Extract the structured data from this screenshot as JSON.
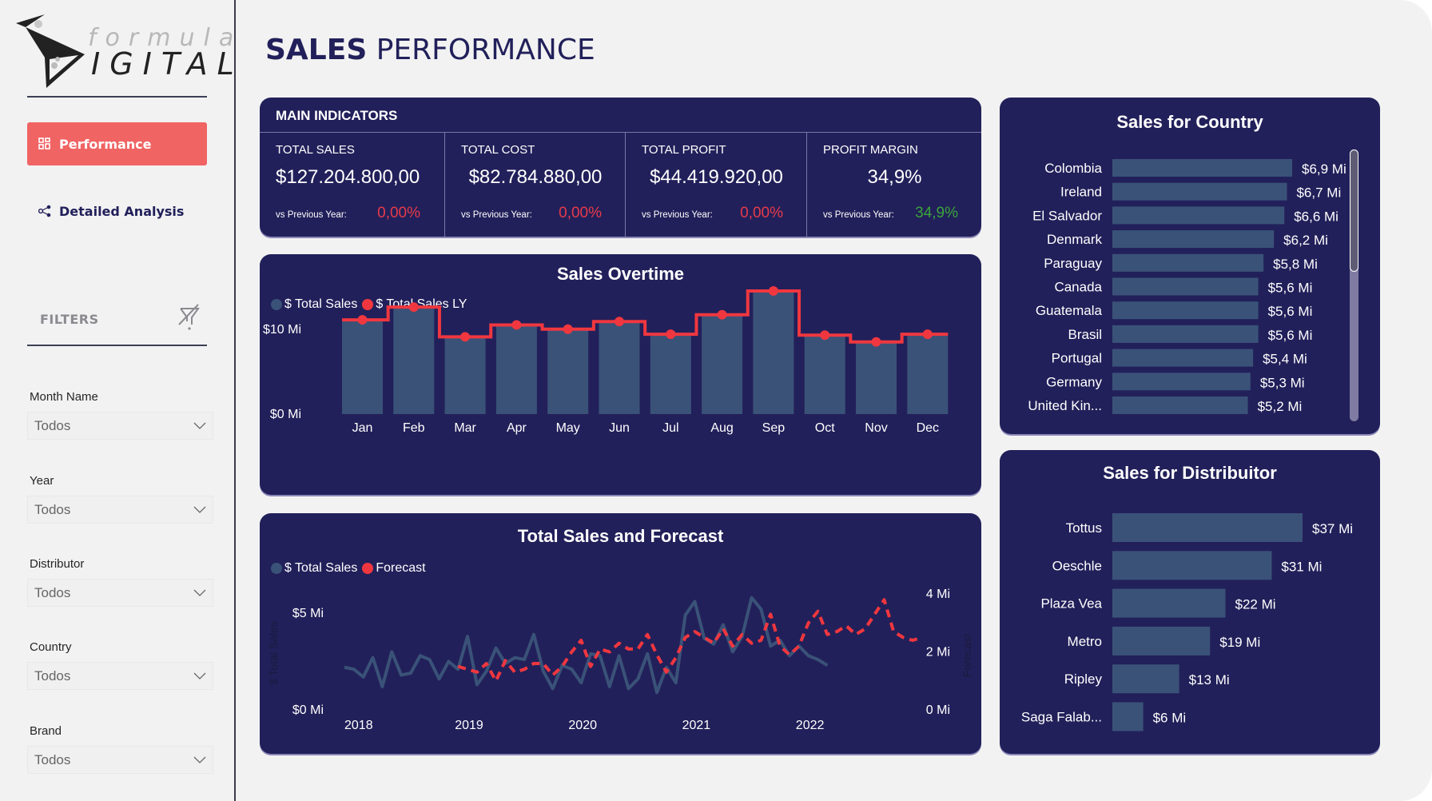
{
  "brand": {
    "logo_top": "formula",
    "logo_bottom": "IGITAL",
    "logo_d": "D"
  },
  "sidebar": {
    "nav": [
      {
        "label": "Performance",
        "icon": "grid-icon",
        "active": true
      },
      {
        "label": "Detailed Analysis",
        "icon": "share-nodes-icon",
        "active": false
      }
    ],
    "filters_title": "FILTERS",
    "filters": [
      {
        "label": "Month Name",
        "value": "Todos"
      },
      {
        "label": "Year",
        "value": "Todos"
      },
      {
        "label": "Distributor",
        "value": "Todos"
      },
      {
        "label": "Country",
        "value": "Todos"
      },
      {
        "label": "Brand",
        "value": "Todos"
      }
    ]
  },
  "header": {
    "title_bold": "SALES",
    "title_light": "PERFORMANCE"
  },
  "main_indicators": {
    "title": "MAIN INDICATORS",
    "kpis": [
      {
        "label": "TOTAL SALES",
        "value": "$127.204.800,00",
        "vs_label": "vs Previous Year:",
        "vs_value": "0,00%",
        "vs_color": "#e83a4a"
      },
      {
        "label": "TOTAL COST",
        "value": "$82.784.880,00",
        "vs_label": "vs Previous Year:",
        "vs_value": "0,00%",
        "vs_color": "#e83a4a"
      },
      {
        "label": "TOTAL PROFIT",
        "value": "$44.419.920,00",
        "vs_label": "vs Previous Year:",
        "vs_value": "0,00%",
        "vs_color": "#e83a4a"
      },
      {
        "label": "PROFIT MARGIN",
        "value": "34,9%",
        "vs_label": "vs Previous Year:",
        "vs_value": "34,9%",
        "vs_color": "#3aa53a"
      }
    ]
  },
  "colors": {
    "panel": "#22205a",
    "bar": "#3a5278",
    "accent_red": "#f0373f",
    "nav_active": "#f06464"
  },
  "chart_data": [
    {
      "id": "sales_overtime",
      "type": "bar",
      "title": "Sales Overtime",
      "legend": [
        "$ Total Sales",
        "$ Total Sales LY"
      ],
      "legend_placement": "top-left",
      "categories": [
        "Jan",
        "Feb",
        "Mar",
        "Apr",
        "May",
        "Jun",
        "Jul",
        "Aug",
        "Sep",
        "Oct",
        "Nov",
        "Dec"
      ],
      "series": [
        {
          "name": "$ Total Sales",
          "type": "bar",
          "values": [
            11.1,
            12.6,
            9.1,
            10.5,
            10.0,
            10.9,
            9.4,
            11.7,
            14.5,
            9.3,
            8.5,
            9.4
          ]
        },
        {
          "name": "$ Total Sales LY",
          "type": "step-line",
          "values": [
            11.1,
            12.6,
            9.1,
            10.5,
            10.0,
            10.9,
            9.4,
            11.7,
            14.5,
            9.3,
            8.5,
            9.4
          ]
        }
      ],
      "yticks": [
        "$0 Mi",
        "$10 Mi"
      ],
      "ytick_values": [
        0,
        10
      ],
      "ylim": [
        0,
        16
      ],
      "unit": "Mi"
    },
    {
      "id": "sales_forecast",
      "type": "line",
      "title": "Total Sales and Forecast",
      "legend": [
        "$ Total Sales",
        "Forecast"
      ],
      "legend_placement": "top-left",
      "xlabel": "",
      "ylabel_left": "$ Total Sales",
      "ylabel_right": "Forecast",
      "xticks": [
        "2018",
        "2019",
        "2020",
        "2021",
        "2022"
      ],
      "yticks_left": [
        "$0 Mi",
        "$5 Mi"
      ],
      "yticks_left_values": [
        0,
        5
      ],
      "yticks_right": [
        "0 Mi",
        "2 Mi",
        "4 Mi"
      ],
      "yticks_right_values": [
        0,
        2,
        4
      ],
      "ylim_left": [
        0,
        6
      ],
      "ylim_right": [
        0,
        4.8
      ],
      "series": [
        {
          "name": "$ Total Sales",
          "axis": "left",
          "start": "2018-01",
          "values": [
            2.2,
            2.1,
            1.7,
            2.7,
            1.2,
            3.0,
            1.8,
            1.9,
            2.8,
            2.6,
            1.6,
            2.5,
            2.1,
            3.8,
            1.3,
            2.0,
            3.2,
            2.4,
            2.7,
            2.6,
            3.9,
            2.0,
            1.1,
            2.3,
            2.1,
            1.4,
            2.9,
            2.8,
            1.2,
            2.8,
            1.1,
            1.6,
            2.9,
            0.9,
            2.2,
            1.4,
            4.9,
            5.6,
            3.7,
            3.4,
            4.4,
            3.0,
            3.8,
            5.8,
            5.2,
            3.3,
            3.6,
            2.8,
            3.3,
            2.8,
            2.6,
            2.3
          ]
        },
        {
          "name": "Forecast",
          "axis": "right",
          "start": "2019-01",
          "values": [
            1.5,
            1.4,
            1.3,
            1.6,
            1.0,
            1.7,
            1.3,
            1.4,
            1.6,
            1.6,
            1.2,
            1.5,
            2.0,
            2.4,
            1.5,
            2.1,
            2.0,
            2.3,
            2.1,
            2.1,
            2.6,
            1.9,
            1.3,
            1.8,
            2.5,
            2.7,
            2.5,
            2.3,
            2.8,
            2.2,
            2.6,
            2.3,
            2.4,
            3.3,
            2.2,
            1.9,
            2.2,
            3.0,
            3.4,
            2.6,
            2.7,
            2.9,
            2.6,
            2.8,
            3.3,
            3.8,
            2.7,
            2.5,
            2.4,
            2.5
          ]
        }
      ]
    },
    {
      "id": "sales_country",
      "type": "bar",
      "orientation": "horizontal",
      "title": "Sales for Country",
      "categories": [
        "Colombia",
        "Ireland",
        "El Salvador",
        "Denmark",
        "Paraguay",
        "Canada",
        "Guatemala",
        "Brasil",
        "Portugal",
        "Germany",
        "United Kin..."
      ],
      "values": [
        6.9,
        6.7,
        6.6,
        6.2,
        5.8,
        5.6,
        5.6,
        5.6,
        5.4,
        5.3,
        5.2
      ],
      "labels": [
        "$6,9 Mi",
        "$6,7 Mi",
        "$6,6 Mi",
        "$6,2 Mi",
        "$5,8 Mi",
        "$5,6 Mi",
        "$5,6 Mi",
        "$5,6 Mi",
        "$5,4 Mi",
        "$5,3 Mi",
        "$5,2 Mi"
      ],
      "xlim": [
        0,
        6.9
      ],
      "scrollable": true
    },
    {
      "id": "sales_distributor",
      "type": "bar",
      "orientation": "horizontal",
      "title": "Sales for Distribuitor",
      "categories": [
        "Tottus",
        "Oeschle",
        "Plaza Vea",
        "Metro",
        "Ripley",
        "Saga Falab..."
      ],
      "values": [
        37,
        31,
        22,
        19,
        13,
        6
      ],
      "labels": [
        "$37 Mi",
        "$31 Mi",
        "$22 Mi",
        "$19 Mi",
        "$13 Mi",
        "$6 Mi"
      ],
      "xlim": [
        0,
        37
      ]
    }
  ]
}
